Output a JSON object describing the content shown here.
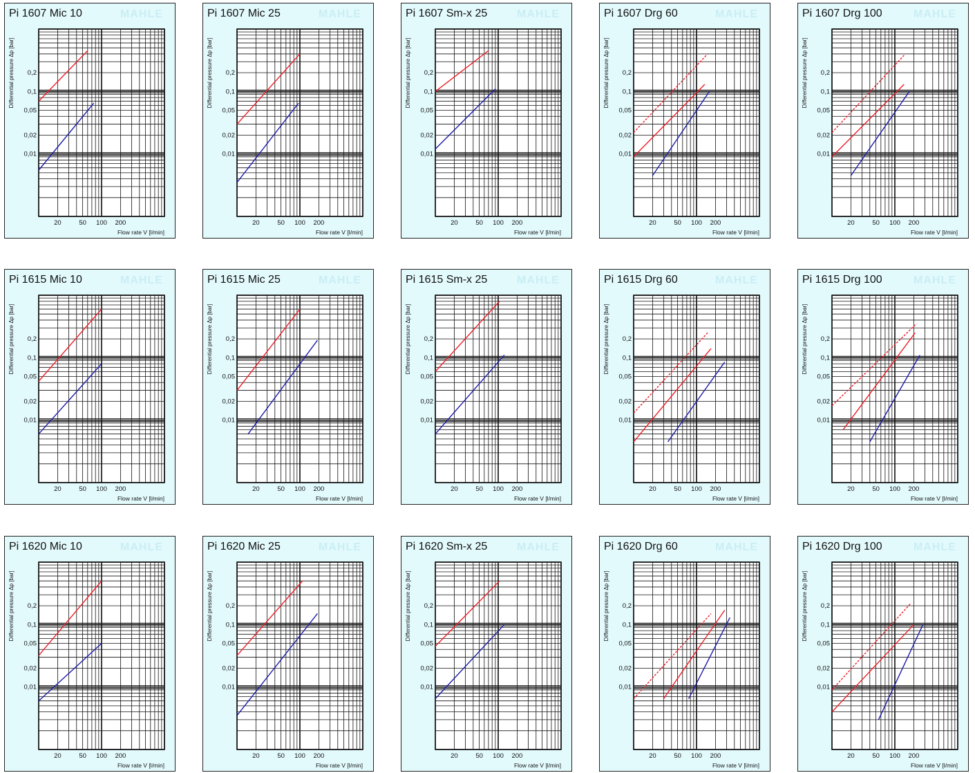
{
  "watermark": "MAHLE",
  "common": {
    "ylabel": "Differential pressure Δp [bar]",
    "xlabel": "Flow rate V [l/min]",
    "xticks": [
      "20",
      "50",
      "100",
      "200"
    ],
    "yticks": [
      "0,2",
      "0,1",
      "0,05",
      "0,02",
      "0,01"
    ]
  },
  "colors": {
    "red": "#ee1c25",
    "blue": "#1a1aa8",
    "grid": "#111111",
    "background": "#e3fafd"
  },
  "chart_data": [
    {
      "type": "line",
      "title": "Pi 1607 Mic 10",
      "xscale": "log",
      "yscale": "log",
      "series": [
        {
          "color": "red",
          "style": "solid",
          "points": [
            [
              10,
              0.07
            ],
            [
              60,
              0.45
            ]
          ]
        },
        {
          "color": "blue",
          "style": "solid",
          "points": [
            [
              10,
              0.0055
            ],
            [
              75,
              0.065
            ]
          ]
        }
      ]
    },
    {
      "type": "line",
      "title": "Pi 1607 Mic 25",
      "xscale": "log",
      "yscale": "log",
      "series": [
        {
          "color": "red",
          "style": "solid",
          "points": [
            [
              10,
              0.03
            ],
            [
              100,
              0.4
            ]
          ]
        },
        {
          "color": "blue",
          "style": "solid",
          "points": [
            [
              10,
              0.0035
            ],
            [
              95,
              0.065
            ]
          ]
        }
      ]
    },
    {
      "type": "line",
      "title": "Pi 1607 Sm-x 25",
      "xscale": "log",
      "yscale": "log",
      "series": [
        {
          "color": "red",
          "style": "solid",
          "points": [
            [
              10,
              0.1
            ],
            [
              70,
              0.45
            ]
          ]
        },
        {
          "color": "blue",
          "style": "solid",
          "points": [
            [
              10,
              0.012
            ],
            [
              90,
              0.11
            ]
          ]
        }
      ]
    },
    {
      "type": "line",
      "title": "Pi 1607 Drg 60",
      "xscale": "log",
      "yscale": "log",
      "series": [
        {
          "color": "red",
          "style": "dashed",
          "points": [
            [
              10,
              0.022
            ],
            [
              150,
              0.4
            ]
          ]
        },
        {
          "color": "red",
          "style": "solid",
          "points": [
            [
              10,
              0.009
            ],
            [
              135,
              0.13
            ]
          ]
        },
        {
          "color": "blue",
          "style": "solid",
          "points": [
            [
              20,
              0.0045
            ],
            [
              160,
              0.1
            ]
          ]
        }
      ]
    },
    {
      "type": "line",
      "title": "Pi 1607 Drg 100",
      "xscale": "log",
      "yscale": "log",
      "series": [
        {
          "color": "red",
          "style": "dashed",
          "points": [
            [
              10,
              0.022
            ],
            [
              140,
              0.38
            ]
          ]
        },
        {
          "color": "red",
          "style": "solid",
          "points": [
            [
              10,
              0.009
            ],
            [
              140,
              0.13
            ]
          ]
        },
        {
          "color": "blue",
          "style": "solid",
          "points": [
            [
              20,
              0.0045
            ],
            [
              170,
              0.1
            ]
          ]
        }
      ]
    },
    {
      "type": "line",
      "title": "Pi 1615 Mic 10",
      "xscale": "log",
      "yscale": "log",
      "series": [
        {
          "color": "red",
          "style": "solid",
          "points": [
            [
              10,
              0.042
            ],
            [
              100,
              0.6
            ]
          ]
        },
        {
          "color": "blue",
          "style": "solid",
          "points": [
            [
              10,
              0.006
            ],
            [
              100,
              0.08
            ]
          ]
        }
      ]
    },
    {
      "type": "line",
      "title": "Pi 1615 Mic 25",
      "xscale": "log",
      "yscale": "log",
      "series": [
        {
          "color": "red",
          "style": "solid",
          "points": [
            [
              10,
              0.03
            ],
            [
              100,
              0.6
            ]
          ]
        },
        {
          "color": "blue",
          "style": "solid",
          "points": [
            [
              15,
              0.006
            ],
            [
              190,
              0.19
            ]
          ]
        }
      ]
    },
    {
      "type": "line",
      "title": "Pi 1615 Sm-x 25",
      "xscale": "log",
      "yscale": "log",
      "series": [
        {
          "color": "red",
          "style": "solid",
          "points": [
            [
              10,
              0.06
            ],
            [
              105,
              0.8
            ]
          ]
        },
        {
          "color": "blue",
          "style": "solid",
          "points": [
            [
              10,
              0.006
            ],
            [
              125,
              0.11
            ]
          ]
        }
      ]
    },
    {
      "type": "line",
      "title": "Pi 1615 Drg 60",
      "xscale": "log",
      "yscale": "log",
      "series": [
        {
          "color": "red",
          "style": "dashed",
          "points": [
            [
              10,
              0.013
            ],
            [
              150,
              0.25
            ]
          ]
        },
        {
          "color": "red",
          "style": "solid",
          "points": [
            [
              10,
              0.0045
            ],
            [
              170,
              0.14
            ]
          ]
        },
        {
          "color": "blue",
          "style": "solid",
          "points": [
            [
              35,
              0.0045
            ],
            [
              280,
              0.085
            ]
          ]
        }
      ]
    },
    {
      "type": "line",
      "title": "Pi 1615 Drg 100",
      "xscale": "log",
      "yscale": "log",
      "series": [
        {
          "color": "red",
          "style": "dashed",
          "points": [
            [
              10,
              0.017
            ],
            [
              220,
              0.35
            ]
          ]
        },
        {
          "color": "red",
          "style": "solid",
          "points": [
            [
              15,
              0.007
            ],
            [
              210,
              0.25
            ]
          ]
        },
        {
          "color": "blue",
          "style": "solid",
          "points": [
            [
              40,
              0.0045
            ],
            [
              250,
              0.11
            ]
          ]
        }
      ]
    },
    {
      "type": "line",
      "title": "Pi 1620 Mic 10",
      "xscale": "log",
      "yscale": "log",
      "series": [
        {
          "color": "red",
          "style": "solid",
          "points": [
            [
              10,
              0.032
            ],
            [
              100,
              0.5
            ]
          ]
        },
        {
          "color": "blue",
          "style": "solid",
          "points": [
            [
              10,
              0.006
            ],
            [
              100,
              0.05
            ]
          ]
        }
      ]
    },
    {
      "type": "line",
      "title": "Pi 1620 Mic 25",
      "xscale": "log",
      "yscale": "log",
      "series": [
        {
          "color": "red",
          "style": "solid",
          "points": [
            [
              10,
              0.032
            ],
            [
              110,
              0.5
            ]
          ]
        },
        {
          "color": "blue",
          "style": "solid",
          "points": [
            [
              10,
              0.0035
            ],
            [
              190,
              0.15
            ]
          ]
        }
      ]
    },
    {
      "type": "line",
      "title": "Pi 1620 Sm-x 25",
      "xscale": "log",
      "yscale": "log",
      "series": [
        {
          "color": "red",
          "style": "solid",
          "points": [
            [
              10,
              0.045
            ],
            [
              105,
              0.5
            ]
          ]
        },
        {
          "color": "blue",
          "style": "solid",
          "points": [
            [
              10,
              0.0065
            ],
            [
              125,
              0.1
            ]
          ]
        }
      ]
    },
    {
      "type": "line",
      "title": "Pi 1620 Drg 60",
      "xscale": "log",
      "yscale": "log",
      "series": [
        {
          "color": "red",
          "style": "dashed",
          "points": [
            [
              10,
              0.0065
            ],
            [
              170,
              0.15
            ]
          ]
        },
        {
          "color": "red",
          "style": "solid",
          "points": [
            [
              30,
              0.0065
            ],
            [
              280,
              0.17
            ]
          ]
        },
        {
          "color": "blue",
          "style": "solid",
          "points": [
            [
              75,
              0.0065
            ],
            [
              340,
              0.13
            ]
          ]
        }
      ]
    },
    {
      "type": "line",
      "title": "Pi 1620 Drg 100",
      "xscale": "log",
      "yscale": "log",
      "series": [
        {
          "color": "red",
          "style": "dashed",
          "points": [
            [
              10,
              0.009
            ],
            [
              180,
              0.22
            ]
          ]
        },
        {
          "color": "red",
          "style": "solid",
          "points": [
            [
              10,
              0.004
            ],
            [
              200,
              0.1
            ]
          ]
        },
        {
          "color": "blue",
          "style": "solid",
          "points": [
            [
              55,
              0.003
            ],
            [
              280,
              0.1
            ]
          ]
        }
      ]
    }
  ]
}
